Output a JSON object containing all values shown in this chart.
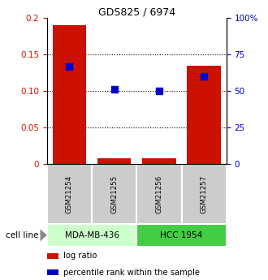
{
  "title": "GDS825 / 6974",
  "samples": [
    "GSM21254",
    "GSM21255",
    "GSM21256",
    "GSM21257"
  ],
  "log_ratio": [
    0.19,
    0.008,
    0.008,
    0.135
  ],
  "percentile_rank": [
    0.67,
    0.51,
    0.5,
    0.6
  ],
  "cell_lines": [
    {
      "label": "MDA-MB-436",
      "samples": [
        0,
        1
      ],
      "color": "#ccffcc"
    },
    {
      "label": "HCC 1954",
      "samples": [
        2,
        3
      ],
      "color": "#44cc44"
    }
  ],
  "left_ylim": [
    0,
    0.2
  ],
  "right_ylim": [
    0,
    1.0
  ],
  "left_yticks": [
    0,
    0.05,
    0.1,
    0.15,
    0.2
  ],
  "left_yticklabels": [
    "0",
    "0.05",
    "0.10",
    "0.15",
    "0.2"
  ],
  "right_yticks": [
    0,
    0.25,
    0.5,
    0.75,
    1.0
  ],
  "right_yticklabels": [
    "0",
    "25",
    "50",
    "75",
    "100%"
  ],
  "bar_color": "#cc1100",
  "dot_color": "#0000cc",
  "bar_width": 0.75,
  "dot_size": 35,
  "left_tick_color": "#cc1100",
  "right_tick_color": "#0000cc",
  "cell_line_label": "cell line",
  "legend_log_ratio": "log ratio",
  "legend_percentile": "percentile rank within the sample",
  "sample_box_color": "#cccccc",
  "fig_width": 3.3,
  "fig_height": 3.45,
  "dpi": 100
}
